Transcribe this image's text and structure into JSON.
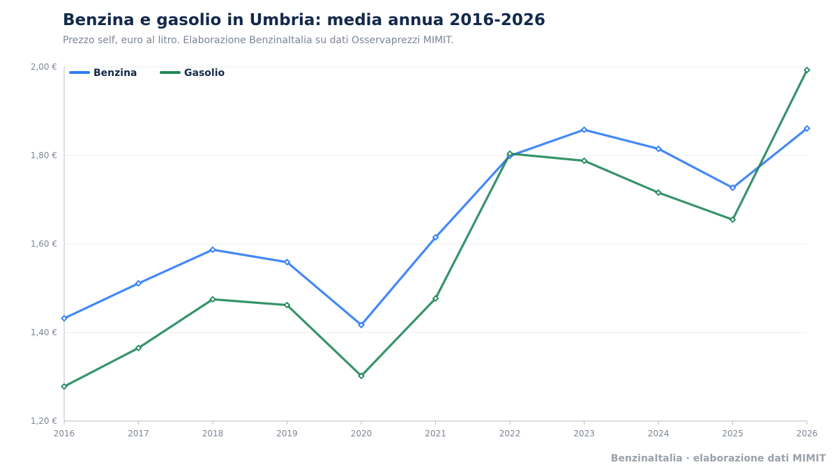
{
  "header": {
    "title": "Benzina e gasolio in Umbria: media annua 2016-2026",
    "subtitle": "Prezzo self, euro al litro. Elaborazione BenzinaItalia su dati Osservaprezzi MIMIT."
  },
  "footer": {
    "credit": "BenzinaItalia · elaborazione dati MIMIT"
  },
  "chart_data": {
    "type": "line",
    "title": "Benzina e gasolio in Umbria: media annua 2016-2026",
    "subtitle": "Prezzo self, euro al litro. Elaborazione BenzinaItalia su dati Osservaprezzi MIMIT.",
    "x": [
      "2016",
      "2017",
      "2018",
      "2019",
      "2020",
      "2021",
      "2022",
      "2023",
      "2024",
      "2025",
      "2026"
    ],
    "ylim": [
      1.2,
      2.0
    ],
    "yticks": [
      1.2,
      1.4,
      1.6,
      1.8,
      2.0
    ],
    "ytick_labels": [
      "1,20 €",
      "1,40 €",
      "1,60 €",
      "1,80 €",
      "2,00 €"
    ],
    "grid": true,
    "legend_position": "top-left",
    "series": [
      {
        "name": "Benzina",
        "color": "#2e7cf6",
        "values": [
          1.432,
          1.511,
          1.587,
          1.559,
          1.417,
          1.615,
          1.799,
          1.858,
          1.815,
          1.727,
          1.861
        ]
      },
      {
        "name": "Gasolio",
        "color": "#21875a",
        "values": [
          1.278,
          1.365,
          1.475,
          1.462,
          1.302,
          1.477,
          1.804,
          1.788,
          1.716,
          1.655,
          1.993
        ]
      }
    ]
  }
}
